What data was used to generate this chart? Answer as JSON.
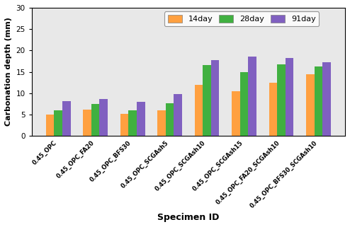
{
  "categories": [
    "0.45_OPC",
    "0.45_OPC_FA20",
    "0.45_OPC_BFS30",
    "0.45_OPC_SCGAsh5",
    "0.45_OPC_SCGAsh10",
    "0.45_OPC_SCGAsh15",
    "0.45_OPC_FA20_SCGAsh10",
    "0.45_OPC_BFS30_SCGAsh10"
  ],
  "series": {
    "14day": [
      5.0,
      6.2,
      5.2,
      6.0,
      11.9,
      10.5,
      12.5,
      14.5
    ],
    "28day": [
      6.0,
      7.4,
      6.0,
      7.7,
      16.5,
      15.0,
      16.7,
      16.3
    ],
    "91day": [
      8.2,
      8.7,
      8.0,
      9.8,
      17.8,
      18.5,
      18.2,
      17.2
    ]
  },
  "colors": {
    "14day": "#FFA040",
    "28day": "#40B040",
    "91day": "#8060C0"
  },
  "legend_labels": [
    "14day",
    "28day",
    "91day"
  ],
  "xlabel": "Specimen ID",
  "ylabel": "Carbonation depth (mm)",
  "ylim": [
    0,
    30
  ],
  "yticks": [
    0,
    5,
    10,
    15,
    20,
    25,
    30
  ],
  "bar_width": 0.22,
  "bg_color": "#E8E8E8",
  "plot_bg_color": "#E8E8E8",
  "outer_bg": "#FFFFFF"
}
